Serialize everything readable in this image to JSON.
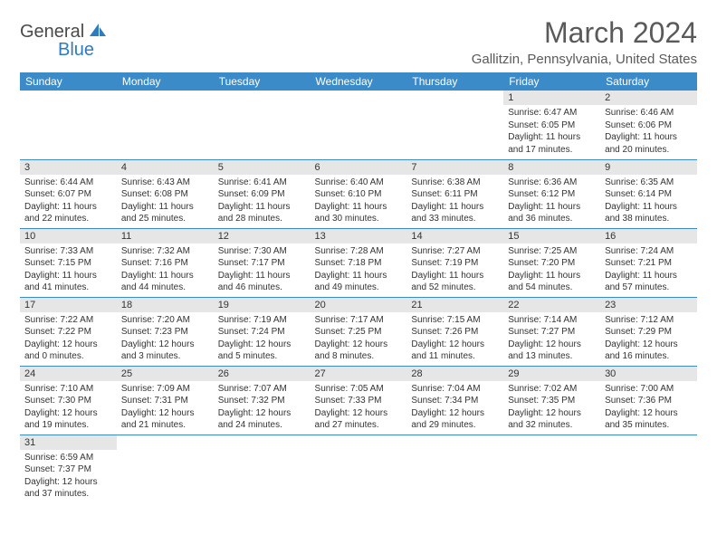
{
  "brand": {
    "text_general": "General",
    "text_blue": "Blue",
    "sail_color": "#2f7bbf"
  },
  "title": "March 2024",
  "location": "Gallitzin, Pennsylvania, United States",
  "colors": {
    "header_bg": "#3b8bc9",
    "header_text": "#ffffff",
    "daynum_bg": "#e6e6e6",
    "text": "#333333",
    "rule": "#3b8bc9"
  },
  "day_labels": [
    "Sunday",
    "Monday",
    "Tuesday",
    "Wednesday",
    "Thursday",
    "Friday",
    "Saturday"
  ],
  "weeks": [
    [
      null,
      null,
      null,
      null,
      null,
      {
        "n": "1",
        "sr": "Sunrise: 6:47 AM",
        "ss": "Sunset: 6:05 PM",
        "dl": "Daylight: 11 hours and 17 minutes."
      },
      {
        "n": "2",
        "sr": "Sunrise: 6:46 AM",
        "ss": "Sunset: 6:06 PM",
        "dl": "Daylight: 11 hours and 20 minutes."
      }
    ],
    [
      {
        "n": "3",
        "sr": "Sunrise: 6:44 AM",
        "ss": "Sunset: 6:07 PM",
        "dl": "Daylight: 11 hours and 22 minutes."
      },
      {
        "n": "4",
        "sr": "Sunrise: 6:43 AM",
        "ss": "Sunset: 6:08 PM",
        "dl": "Daylight: 11 hours and 25 minutes."
      },
      {
        "n": "5",
        "sr": "Sunrise: 6:41 AM",
        "ss": "Sunset: 6:09 PM",
        "dl": "Daylight: 11 hours and 28 minutes."
      },
      {
        "n": "6",
        "sr": "Sunrise: 6:40 AM",
        "ss": "Sunset: 6:10 PM",
        "dl": "Daylight: 11 hours and 30 minutes."
      },
      {
        "n": "7",
        "sr": "Sunrise: 6:38 AM",
        "ss": "Sunset: 6:11 PM",
        "dl": "Daylight: 11 hours and 33 minutes."
      },
      {
        "n": "8",
        "sr": "Sunrise: 6:36 AM",
        "ss": "Sunset: 6:12 PM",
        "dl": "Daylight: 11 hours and 36 minutes."
      },
      {
        "n": "9",
        "sr": "Sunrise: 6:35 AM",
        "ss": "Sunset: 6:14 PM",
        "dl": "Daylight: 11 hours and 38 minutes."
      }
    ],
    [
      {
        "n": "10",
        "sr": "Sunrise: 7:33 AM",
        "ss": "Sunset: 7:15 PM",
        "dl": "Daylight: 11 hours and 41 minutes."
      },
      {
        "n": "11",
        "sr": "Sunrise: 7:32 AM",
        "ss": "Sunset: 7:16 PM",
        "dl": "Daylight: 11 hours and 44 minutes."
      },
      {
        "n": "12",
        "sr": "Sunrise: 7:30 AM",
        "ss": "Sunset: 7:17 PM",
        "dl": "Daylight: 11 hours and 46 minutes."
      },
      {
        "n": "13",
        "sr": "Sunrise: 7:28 AM",
        "ss": "Sunset: 7:18 PM",
        "dl": "Daylight: 11 hours and 49 minutes."
      },
      {
        "n": "14",
        "sr": "Sunrise: 7:27 AM",
        "ss": "Sunset: 7:19 PM",
        "dl": "Daylight: 11 hours and 52 minutes."
      },
      {
        "n": "15",
        "sr": "Sunrise: 7:25 AM",
        "ss": "Sunset: 7:20 PM",
        "dl": "Daylight: 11 hours and 54 minutes."
      },
      {
        "n": "16",
        "sr": "Sunrise: 7:24 AM",
        "ss": "Sunset: 7:21 PM",
        "dl": "Daylight: 11 hours and 57 minutes."
      }
    ],
    [
      {
        "n": "17",
        "sr": "Sunrise: 7:22 AM",
        "ss": "Sunset: 7:22 PM",
        "dl": "Daylight: 12 hours and 0 minutes."
      },
      {
        "n": "18",
        "sr": "Sunrise: 7:20 AM",
        "ss": "Sunset: 7:23 PM",
        "dl": "Daylight: 12 hours and 3 minutes."
      },
      {
        "n": "19",
        "sr": "Sunrise: 7:19 AM",
        "ss": "Sunset: 7:24 PM",
        "dl": "Daylight: 12 hours and 5 minutes."
      },
      {
        "n": "20",
        "sr": "Sunrise: 7:17 AM",
        "ss": "Sunset: 7:25 PM",
        "dl": "Daylight: 12 hours and 8 minutes."
      },
      {
        "n": "21",
        "sr": "Sunrise: 7:15 AM",
        "ss": "Sunset: 7:26 PM",
        "dl": "Daylight: 12 hours and 11 minutes."
      },
      {
        "n": "22",
        "sr": "Sunrise: 7:14 AM",
        "ss": "Sunset: 7:27 PM",
        "dl": "Daylight: 12 hours and 13 minutes."
      },
      {
        "n": "23",
        "sr": "Sunrise: 7:12 AM",
        "ss": "Sunset: 7:29 PM",
        "dl": "Daylight: 12 hours and 16 minutes."
      }
    ],
    [
      {
        "n": "24",
        "sr": "Sunrise: 7:10 AM",
        "ss": "Sunset: 7:30 PM",
        "dl": "Daylight: 12 hours and 19 minutes."
      },
      {
        "n": "25",
        "sr": "Sunrise: 7:09 AM",
        "ss": "Sunset: 7:31 PM",
        "dl": "Daylight: 12 hours and 21 minutes."
      },
      {
        "n": "26",
        "sr": "Sunrise: 7:07 AM",
        "ss": "Sunset: 7:32 PM",
        "dl": "Daylight: 12 hours and 24 minutes."
      },
      {
        "n": "27",
        "sr": "Sunrise: 7:05 AM",
        "ss": "Sunset: 7:33 PM",
        "dl": "Daylight: 12 hours and 27 minutes."
      },
      {
        "n": "28",
        "sr": "Sunrise: 7:04 AM",
        "ss": "Sunset: 7:34 PM",
        "dl": "Daylight: 12 hours and 29 minutes."
      },
      {
        "n": "29",
        "sr": "Sunrise: 7:02 AM",
        "ss": "Sunset: 7:35 PM",
        "dl": "Daylight: 12 hours and 32 minutes."
      },
      {
        "n": "30",
        "sr": "Sunrise: 7:00 AM",
        "ss": "Sunset: 7:36 PM",
        "dl": "Daylight: 12 hours and 35 minutes."
      }
    ],
    [
      {
        "n": "31",
        "sr": "Sunrise: 6:59 AM",
        "ss": "Sunset: 7:37 PM",
        "dl": "Daylight: 12 hours and 37 minutes."
      },
      null,
      null,
      null,
      null,
      null,
      null
    ]
  ]
}
